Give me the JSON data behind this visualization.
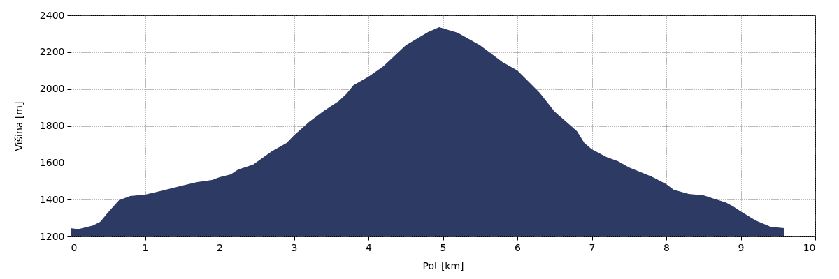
{
  "chart_data": {
    "type": "area",
    "xlabel": "Pot [km]",
    "ylabel": "Višina [m]",
    "xlim": [
      0,
      10
    ],
    "ylim": [
      1200,
      2400
    ],
    "xticks": [
      0,
      1,
      2,
      3,
      4,
      5,
      6,
      7,
      8,
      9,
      10
    ],
    "yticks": [
      1200,
      1400,
      1600,
      1800,
      2000,
      2200,
      2400
    ],
    "grid": true,
    "series": [
      {
        "color": "#2d3a64",
        "x": [
          0,
          0.1,
          0.3,
          0.4,
          0.5,
          0.65,
          0.8,
          1.0,
          1.2,
          1.5,
          1.7,
          1.9,
          2.0,
          2.15,
          2.25,
          2.45,
          2.7,
          2.9,
          3.0,
          3.2,
          3.4,
          3.6,
          3.7,
          3.8,
          4.0,
          4.2,
          4.5,
          4.8,
          4.95,
          5.2,
          5.5,
          5.8,
          6.0,
          6.3,
          6.5,
          6.8,
          6.9,
          7.0,
          7.2,
          7.35,
          7.5,
          7.8,
          8.0,
          8.1,
          8.3,
          8.5,
          8.8,
          8.9,
          9.0,
          9.2,
          9.4,
          9.58
        ],
        "values": [
          1245,
          1240,
          1260,
          1280,
          1330,
          1397,
          1420,
          1427,
          1446,
          1476,
          1495,
          1507,
          1522,
          1537,
          1563,
          1590,
          1662,
          1707,
          1749,
          1821,
          1881,
          1934,
          1972,
          2021,
          2067,
          2124,
          2237,
          2309,
          2336,
          2305,
          2237,
          2146,
          2101,
          1980,
          1878,
          1772,
          1707,
          1673,
          1631,
          1609,
          1575,
          1526,
          1484,
          1454,
          1431,
          1423,
          1385,
          1363,
          1336,
          1287,
          1253,
          1245
        ]
      }
    ]
  }
}
